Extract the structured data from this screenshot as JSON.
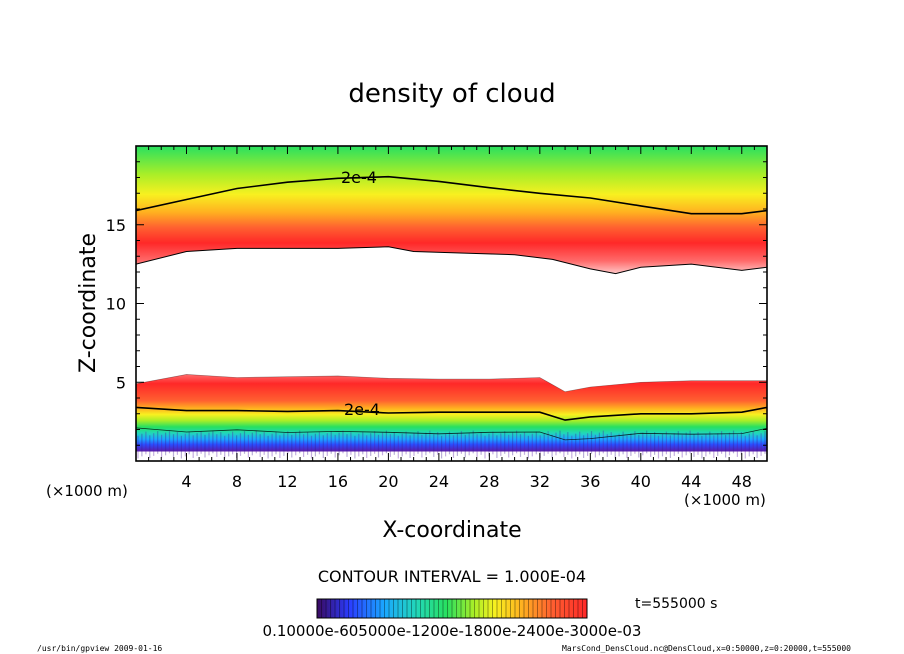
{
  "chart_data": {
    "type": "heatmap",
    "title": "density of cloud",
    "xlabel": "X-coordinate",
    "ylabel": "Z-coordinate",
    "x_unit": "(×1000 m)",
    "z_unit": "(×1000 m)",
    "xlim": [
      0,
      50
    ],
    "ylim": [
      0,
      20
    ],
    "x_ticks": [
      4,
      8,
      12,
      16,
      20,
      24,
      28,
      32,
      36,
      40,
      44,
      48
    ],
    "y_ticks": [
      5,
      10,
      15
    ],
    "contour_label": "2e-4",
    "contour_interval": "CONTOUR INTERVAL = 1.000E-04",
    "time_label": "t=555000 s",
    "colorbar_labels": "0.10000e-605000e-1200e-1800e-2400e-3000e-03",
    "colormap": [
      "#5a1aa6",
      "#2a4cff",
      "#1aa8ff",
      "#22d8b8",
      "#28e060",
      "#a8ee28",
      "#f8f020",
      "#ffb020",
      "#ff6030",
      "#ff2828"
    ],
    "upper_cloud_top_contour": [
      [
        0,
        15.9
      ],
      [
        4,
        16.6
      ],
      [
        8,
        17.3
      ],
      [
        12,
        17.7
      ],
      [
        16,
        17.95
      ],
      [
        20,
        18.05
      ],
      [
        24,
        17.75
      ],
      [
        28,
        17.35
      ],
      [
        32,
        17.0
      ],
      [
        36,
        16.7
      ],
      [
        40,
        16.2
      ],
      [
        44,
        15.7
      ],
      [
        48,
        15.7
      ],
      [
        50,
        15.9
      ]
    ],
    "upper_cloud_base": [
      [
        0,
        12.5
      ],
      [
        4,
        13.3
      ],
      [
        8,
        13.5
      ],
      [
        12,
        13.5
      ],
      [
        16,
        13.5
      ],
      [
        20,
        13.6
      ],
      [
        22,
        13.3
      ],
      [
        26,
        13.2
      ],
      [
        30,
        13.1
      ],
      [
        33,
        12.8
      ],
      [
        36,
        12.2
      ],
      [
        38,
        11.9
      ],
      [
        40,
        12.3
      ],
      [
        44,
        12.5
      ],
      [
        48,
        12.1
      ],
      [
        50,
        12.3
      ]
    ],
    "lower_cloud_top": [
      [
        0,
        4.9
      ],
      [
        4,
        5.5
      ],
      [
        8,
        5.3
      ],
      [
        12,
        5.35
      ],
      [
        16,
        5.4
      ],
      [
        20,
        5.25
      ],
      [
        24,
        5.2
      ],
      [
        28,
        5.2
      ],
      [
        32,
        5.3
      ],
      [
        34,
        4.4
      ],
      [
        36,
        4.7
      ],
      [
        40,
        5.0
      ],
      [
        44,
        5.1
      ],
      [
        50,
        5.1
      ]
    ],
    "lower_contour": [
      [
        0,
        3.4
      ],
      [
        4,
        3.2
      ],
      [
        8,
        3.2
      ],
      [
        12,
        3.15
      ],
      [
        16,
        3.2
      ],
      [
        20,
        3.05
      ],
      [
        24,
        3.1
      ],
      [
        28,
        3.1
      ],
      [
        32,
        3.1
      ],
      [
        34,
        2.6
      ],
      [
        36,
        2.8
      ],
      [
        40,
        3.0
      ],
      [
        44,
        3.0
      ],
      [
        48,
        3.1
      ],
      [
        50,
        3.4
      ]
    ]
  },
  "footer": {
    "left": "/usr/bin/gpview  2009-01-16",
    "right": "MarsCond_DensCloud.nc@DensCloud,x=0:50000,z=0:20000,t=555000"
  }
}
